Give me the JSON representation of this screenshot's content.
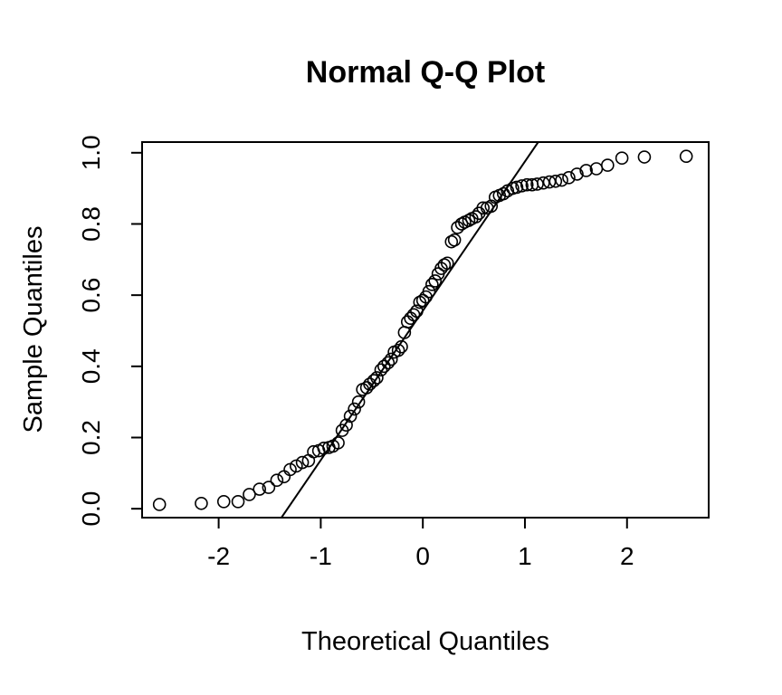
{
  "chart_data": {
    "type": "scatter",
    "title": "Normal Q-Q Plot",
    "xlabel": "Theoretical Quantiles",
    "ylabel": "Sample Quantiles",
    "xlim": [
      -2.75,
      2.8
    ],
    "ylim": [
      -0.025,
      1.03
    ],
    "x_ticks": [
      -2,
      -1,
      0,
      1,
      2
    ],
    "x_tick_labels": [
      "-2",
      "-1",
      "0",
      "1",
      "2"
    ],
    "y_ticks": [
      0.0,
      0.2,
      0.4,
      0.6,
      0.8,
      1.0
    ],
    "y_tick_labels": [
      "0.0",
      "0.2",
      "0.4",
      "0.6",
      "0.8",
      "1.0"
    ],
    "grid": false,
    "point_style": "open-circle",
    "reference_line": {
      "points": [
        [
          -1.385,
          -0.025
        ],
        [
          1.13,
          1.03
        ]
      ]
    },
    "x": [
      -2.58,
      -2.17,
      -1.95,
      -1.81,
      -1.7,
      -1.6,
      -1.51,
      -1.43,
      -1.36,
      -1.3,
      -1.24,
      -1.18,
      -1.12,
      -1.07,
      -1.02,
      -0.97,
      -0.92,
      -0.88,
      -0.83,
      -0.79,
      -0.75,
      -0.71,
      -0.67,
      -0.63,
      -0.59,
      -0.55,
      -0.52,
      -0.48,
      -0.45,
      -0.41,
      -0.38,
      -0.34,
      -0.31,
      -0.28,
      -0.24,
      -0.21,
      -0.18,
      -0.15,
      -0.12,
      -0.09,
      -0.06,
      -0.03,
      0.0,
      0.03,
      0.06,
      0.09,
      0.12,
      0.15,
      0.18,
      0.21,
      0.24,
      0.28,
      0.31,
      0.34,
      0.38,
      0.41,
      0.45,
      0.48,
      0.52,
      0.55,
      0.59,
      0.63,
      0.67,
      0.71,
      0.75,
      0.79,
      0.83,
      0.88,
      0.92,
      0.97,
      1.02,
      1.07,
      1.12,
      1.18,
      1.24,
      1.3,
      1.36,
      1.43,
      1.51,
      1.6,
      1.7,
      1.81,
      1.95,
      2.17,
      2.58
    ],
    "y": [
      0.012,
      0.015,
      0.02,
      0.02,
      0.04,
      0.055,
      0.06,
      0.08,
      0.09,
      0.11,
      0.12,
      0.13,
      0.135,
      0.16,
      0.163,
      0.17,
      0.172,
      0.176,
      0.185,
      0.22,
      0.235,
      0.26,
      0.28,
      0.3,
      0.335,
      0.34,
      0.35,
      0.36,
      0.368,
      0.39,
      0.4,
      0.41,
      0.42,
      0.44,
      0.445,
      0.455,
      0.495,
      0.525,
      0.535,
      0.545,
      0.555,
      0.58,
      0.585,
      0.595,
      0.61,
      0.63,
      0.64,
      0.66,
      0.675,
      0.685,
      0.69,
      0.75,
      0.755,
      0.79,
      0.8,
      0.805,
      0.81,
      0.815,
      0.82,
      0.83,
      0.845,
      0.845,
      0.85,
      0.875,
      0.88,
      0.885,
      0.893,
      0.9,
      0.903,
      0.907,
      0.91,
      0.91,
      0.912,
      0.915,
      0.918,
      0.92,
      0.923,
      0.93,
      0.94,
      0.95,
      0.955,
      0.965,
      0.985,
      0.988,
      0.99
    ]
  }
}
